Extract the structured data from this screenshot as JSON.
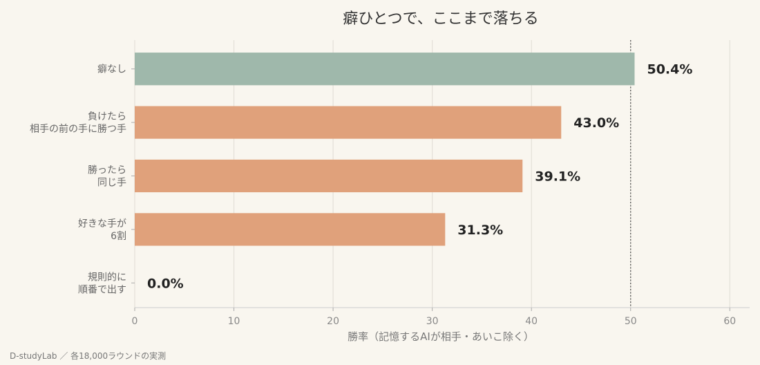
{
  "chart_data": {
    "type": "bar",
    "orientation": "horizontal",
    "title": "癖ひとつで、ここまで落ちる",
    "xlabel": "勝率（記憶するAIが相手・あいこ除く）",
    "xlim": [
      0,
      62
    ],
    "xticks": [
      0,
      10,
      20,
      30,
      40,
      50,
      60
    ],
    "reference_line": 50,
    "grid": true,
    "categories": [
      [
        "癖なし"
      ],
      [
        "負けたら",
        "相手の前の手に勝つ手"
      ],
      [
        "勝ったら",
        "同じ手"
      ],
      [
        "好きな手が",
        "6割"
      ],
      [
        "規則的に",
        "順番で出す"
      ]
    ],
    "values": [
      50.4,
      43.0,
      39.1,
      31.3,
      0.0
    ],
    "value_labels": [
      "50.4%",
      "43.0%",
      "39.1%",
      "31.3%",
      "0.0%"
    ],
    "colors": [
      "#9fb8ab",
      "#e0a17b",
      "#e0a17b",
      "#e0a17b",
      "#e0a17b"
    ]
  },
  "source": "D-studyLab ／ 各18,000ラウンドの実測"
}
